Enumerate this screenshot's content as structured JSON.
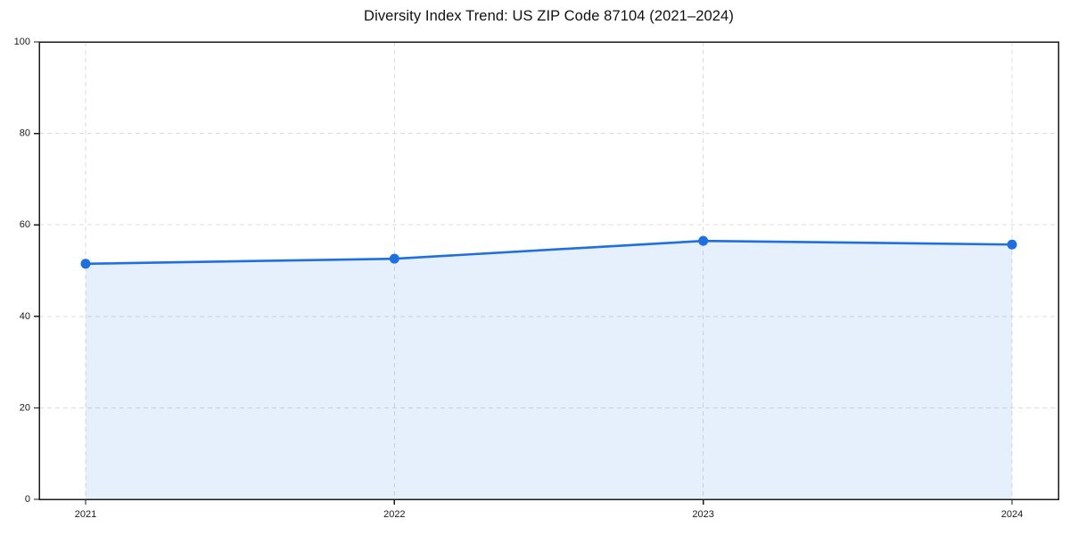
{
  "page": {
    "background": "#ffffff"
  },
  "chart_data": {
    "type": "area",
    "title": "Diversity Index Trend: US ZIP Code 87104 (2021–2024)",
    "subtitle": "",
    "categories": [
      "2021",
      "2022",
      "2023",
      "2024"
    ],
    "series": [
      {
        "name": "Diversity Index",
        "values": [
          51.5,
          52.6,
          56.5,
          55.7
        ]
      }
    ],
    "xlabel": "",
    "ylabel": "",
    "ylim": [
      0,
      100
    ],
    "yticks": [
      0,
      20,
      40,
      60,
      80,
      100
    ],
    "grid": "on",
    "grid_style": "dashed",
    "legend_position": "none",
    "marker": "circle",
    "colors": {
      "line": "#1f6fe0",
      "marker": "#1f6fe0",
      "area_fill": "#1f6fe0",
      "area_fill_opacity": 0.11,
      "grid": "#dcdcdc",
      "axis": "#1a1a1a",
      "tick_label": "#1a1a1a",
      "title": "#111111",
      "background": "#ffffff"
    }
  }
}
